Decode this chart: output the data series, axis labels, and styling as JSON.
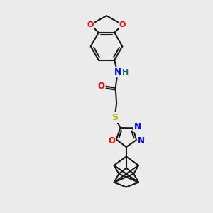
{
  "background_color": "#ebebeb",
  "bond_color": "#1a1a1a",
  "bond_width": 1.5,
  "atom_colors": {
    "O": "#ff0000",
    "N": "#0000ff",
    "S": "#b8b800",
    "H": "#007070",
    "C": "#1a1a1a"
  },
  "figsize": [
    3.0,
    3.0
  ],
  "dpi": 100
}
